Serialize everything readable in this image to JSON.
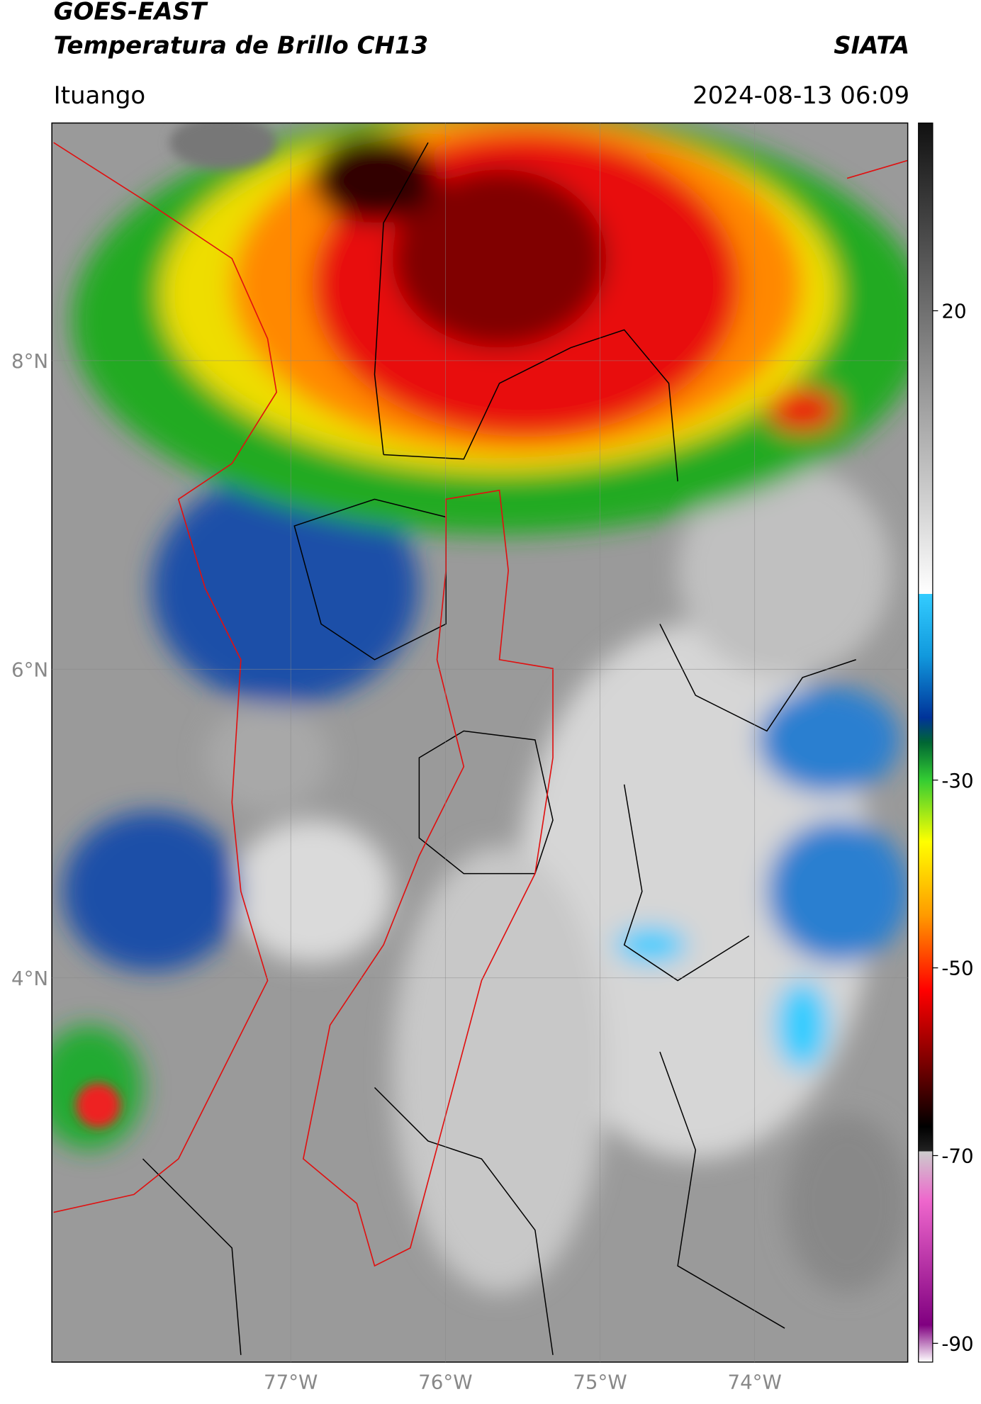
{
  "header": {
    "title": "GOES-EAST",
    "subtitle": "Temperatura de Brillo CH13",
    "source": "SIATA",
    "location": "Ituango",
    "datetime": "2024-08-13 06:09"
  },
  "map": {
    "xlim": [
      -78.545,
      -73.01
    ],
    "ylim": [
      1.51,
      9.54
    ],
    "xticks": [
      {
        "value": -77,
        "label": "77°W"
      },
      {
        "value": -76,
        "label": "76°W"
      },
      {
        "value": -75,
        "label": "75°W"
      },
      {
        "value": -74,
        "label": "74°W"
      }
    ],
    "yticks": [
      {
        "value": 8,
        "label": "8°N"
      },
      {
        "value": 6,
        "label": "6°N"
      },
      {
        "value": 4,
        "label": "4°N"
      }
    ],
    "grid": true
  },
  "colorbar": {
    "lim": [
      -92,
      40
    ],
    "ticks": [
      20,
      -30,
      -50,
      -70,
      -90
    ]
  }
}
